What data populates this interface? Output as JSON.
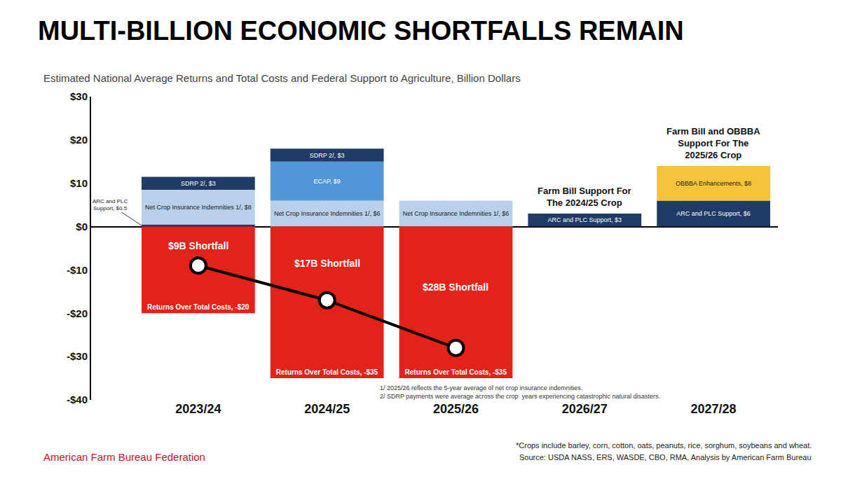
{
  "chart_data": {
    "type": "bar",
    "title": "MULTI-BILLION ECONOMIC SHORTFALLS REMAIN",
    "subtitle": "Estimated National Average Returns and Total Costs and Federal Support to Agriculture, Billion Dollars",
    "categories": [
      "2023/24",
      "2024/25",
      "2025/26",
      "2026/27",
      "2027/28"
    ],
    "stacked": true,
    "data_labels": true,
    "grid": false,
    "ylim": [
      -40,
      30
    ],
    "yticks": [
      {
        "value": -40,
        "label": "-$40"
      },
      {
        "value": -30,
        "label": "-$30"
      },
      {
        "value": -20,
        "label": "-$20"
      },
      {
        "value": -10,
        "label": "-$10"
      },
      {
        "value": 0,
        "label": "$0"
      },
      {
        "value": 10,
        "label": "$10"
      },
      {
        "value": 20,
        "label": "$20"
      },
      {
        "value": 30,
        "label": "$30"
      }
    ],
    "series": [
      {
        "name": "ARC and PLC Support",
        "color": "#1f3b66",
        "values": [
          0.5,
          null,
          null,
          3,
          6
        ],
        "value_labels": [
          "ARC and PLC Support, $0.5",
          null,
          null,
          "ARC and PLC Support, $3",
          "ARC and PLC Support, $6"
        ]
      },
      {
        "name": "Net Crop Insurance Indemnities 1/",
        "color": "#b8d0ea",
        "values": [
          8,
          6,
          6,
          null,
          null
        ],
        "value_labels": [
          "Net Crop Insurance Indemnities 1/, $8",
          "Net Crop Insurance Indemnities 1/, $6",
          "Net Crop Insurance Indemnities 1/, $6",
          null,
          null
        ]
      },
      {
        "name": "ECAP",
        "color": "#4f97d6",
        "values": [
          null,
          9,
          null,
          null,
          null
        ],
        "value_labels": [
          null,
          "ECAP, $9",
          null,
          null,
          null
        ]
      },
      {
        "name": "SDRP 2/",
        "color": "#1f3b66",
        "values": [
          3,
          3,
          null,
          null,
          null
        ],
        "value_labels": [
          "SDRP 2/, $3",
          "SDRP 2/, $3",
          null,
          null,
          null
        ]
      },
      {
        "name": "OBBBA Enhancements",
        "color": "#f7c33a",
        "values": [
          null,
          null,
          null,
          null,
          8
        ],
        "value_labels": [
          null,
          null,
          null,
          null,
          "OBBBA Enhancements, $8"
        ]
      },
      {
        "name": "Returns Over Total Costs",
        "color": "#e32219",
        "values": [
          -20,
          -35,
          -35,
          null,
          null
        ],
        "value_labels": [
          "Returns Over Total Costs, -$20",
          "Returns Over Total Costs, -$35",
          "Returns Over Total Costs, -$35",
          null,
          null
        ]
      },
      {
        "type": "line",
        "color": "#000000",
        "marker": "circle",
        "values": [
          -9,
          -17,
          -28,
          null,
          null
        ],
        "value_labels": [
          "$9B Shortfall",
          "$17B Shortfall",
          "$28B Shortfall",
          null,
          null
        ]
      }
    ],
    "annotations": [
      {
        "category": "2026/27",
        "text": "Farm Bill Support For The 2024/25 Crop"
      },
      {
        "category": "2027/28",
        "text": "Farm Bill and OBBBA Support For The 2025/26 Crop"
      }
    ],
    "footnotes": [
      "1/ 2025/26 reflects the 5-year average of net crop insurance indemnities.",
      "2/ SDRP payments were average across the crop  years experiencing catastrophic natural disasters."
    ],
    "notes": [
      "*Crops include barley, corn, cotton, oats, peanuts, rice, sorghum, soybeans and wheat.",
      "Source: USDA NASS, ERS, WASDE, CBO, RMA, Analysis by American Farm Bureau"
    ],
    "source_org": "American Farm Bureau Federation"
  }
}
